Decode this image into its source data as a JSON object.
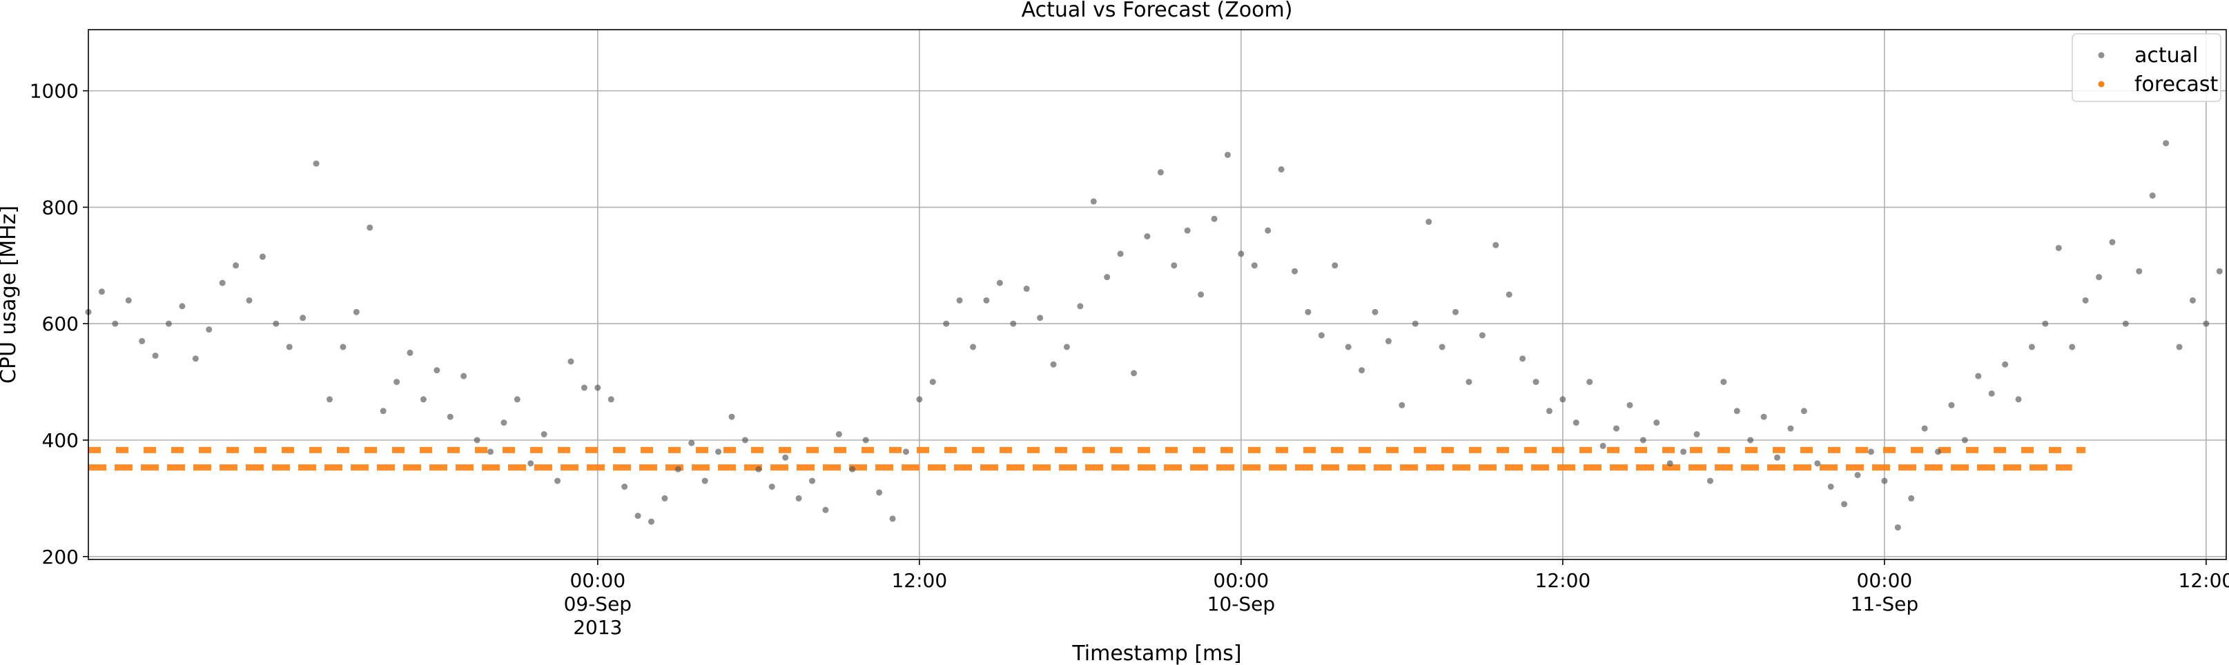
{
  "chart_data": {
    "type": "scatter",
    "title": "Actual vs Forecast (Zoom)",
    "xlabel": "Timestamp [ms]",
    "ylabel": "CPU usage [MHz]",
    "xlim": [
      "2013-09-08T05:00",
      "2013-09-11T12:45"
    ],
    "ylim": [
      195,
      1105
    ],
    "grid": true,
    "legend_position": "top-right",
    "x_ticks": [
      {
        "at": "2013-09-09T00:00",
        "label": "00:00",
        "sub": "09-Sep",
        "sub2": "2013"
      },
      {
        "at": "2013-09-09T12:00",
        "label": "12:00",
        "sub": "",
        "sub2": ""
      },
      {
        "at": "2013-09-10T00:00",
        "label": "00:00",
        "sub": "10-Sep",
        "sub2": ""
      },
      {
        "at": "2013-09-10T12:00",
        "label": "12:00",
        "sub": "",
        "sub2": ""
      },
      {
        "at": "2013-09-11T00:00",
        "label": "00:00",
        "sub": "11-Sep",
        "sub2": ""
      },
      {
        "at": "2013-09-11T12:00",
        "label": "12:00",
        "sub": "",
        "sub2": ""
      }
    ],
    "y_ticks": [
      200,
      400,
      600,
      800,
      1000
    ],
    "series": [
      {
        "name": "actual",
        "color": "#555555",
        "points": [
          [
            "2013-09-08T05:00",
            620
          ],
          [
            "2013-09-08T05:30",
            655
          ],
          [
            "2013-09-08T06:00",
            600
          ],
          [
            "2013-09-08T06:30",
            640
          ],
          [
            "2013-09-08T07:00",
            570
          ],
          [
            "2013-09-08T07:30",
            545
          ],
          [
            "2013-09-08T08:00",
            600
          ],
          [
            "2013-09-08T08:30",
            630
          ],
          [
            "2013-09-08T09:00",
            540
          ],
          [
            "2013-09-08T09:30",
            590
          ],
          [
            "2013-09-08T10:00",
            670
          ],
          [
            "2013-09-08T10:30",
            700
          ],
          [
            "2013-09-08T11:00",
            640
          ],
          [
            "2013-09-08T11:30",
            715
          ],
          [
            "2013-09-08T12:00",
            600
          ],
          [
            "2013-09-08T12:30",
            560
          ],
          [
            "2013-09-08T13:00",
            610
          ],
          [
            "2013-09-08T13:30",
            875
          ],
          [
            "2013-09-08T14:00",
            470
          ],
          [
            "2013-09-08T14:30",
            560
          ],
          [
            "2013-09-08T15:00",
            620
          ],
          [
            "2013-09-08T15:30",
            765
          ],
          [
            "2013-09-08T16:00",
            450
          ],
          [
            "2013-09-08T16:30",
            500
          ],
          [
            "2013-09-08T17:00",
            550
          ],
          [
            "2013-09-08T17:30",
            470
          ],
          [
            "2013-09-08T18:00",
            520
          ],
          [
            "2013-09-08T18:30",
            440
          ],
          [
            "2013-09-08T19:00",
            510
          ],
          [
            "2013-09-08T19:30",
            400
          ],
          [
            "2013-09-08T20:00",
            380
          ],
          [
            "2013-09-08T20:30",
            430
          ],
          [
            "2013-09-08T21:00",
            470
          ],
          [
            "2013-09-08T21:30",
            360
          ],
          [
            "2013-09-08T22:00",
            410
          ],
          [
            "2013-09-08T22:30",
            330
          ],
          [
            "2013-09-08T23:00",
            535
          ],
          [
            "2013-09-08T23:30",
            490
          ],
          [
            "2013-09-09T00:00",
            490
          ],
          [
            "2013-09-09T00:30",
            470
          ],
          [
            "2013-09-09T01:00",
            320
          ],
          [
            "2013-09-09T01:30",
            270
          ],
          [
            "2013-09-09T02:00",
            260
          ],
          [
            "2013-09-09T02:30",
            300
          ],
          [
            "2013-09-09T03:00",
            350
          ],
          [
            "2013-09-09T03:30",
            395
          ],
          [
            "2013-09-09T04:00",
            330
          ],
          [
            "2013-09-09T04:30",
            380
          ],
          [
            "2013-09-09T05:00",
            440
          ],
          [
            "2013-09-09T05:30",
            400
          ],
          [
            "2013-09-09T06:00",
            350
          ],
          [
            "2013-09-09T06:30",
            320
          ],
          [
            "2013-09-09T07:00",
            370
          ],
          [
            "2013-09-09T07:30",
            300
          ],
          [
            "2013-09-09T08:00",
            330
          ],
          [
            "2013-09-09T08:30",
            280
          ],
          [
            "2013-09-09T09:00",
            410
          ],
          [
            "2013-09-09T09:30",
            350
          ],
          [
            "2013-09-09T10:00",
            400
          ],
          [
            "2013-09-09T10:30",
            310
          ],
          [
            "2013-09-09T11:00",
            265
          ],
          [
            "2013-09-09T11:30",
            380
          ],
          [
            "2013-09-09T12:00",
            470
          ],
          [
            "2013-09-09T12:30",
            500
          ],
          [
            "2013-09-09T13:00",
            600
          ],
          [
            "2013-09-09T13:30",
            640
          ],
          [
            "2013-09-09T14:00",
            560
          ],
          [
            "2013-09-09T14:30",
            640
          ],
          [
            "2013-09-09T15:00",
            670
          ],
          [
            "2013-09-09T15:30",
            600
          ],
          [
            "2013-09-09T16:00",
            660
          ],
          [
            "2013-09-09T16:30",
            610
          ],
          [
            "2013-09-09T17:00",
            530
          ],
          [
            "2013-09-09T17:30",
            560
          ],
          [
            "2013-09-09T18:00",
            630
          ],
          [
            "2013-09-09T18:30",
            810
          ],
          [
            "2013-09-09T19:00",
            680
          ],
          [
            "2013-09-09T19:30",
            720
          ],
          [
            "2013-09-09T20:00",
            515
          ],
          [
            "2013-09-09T20:30",
            750
          ],
          [
            "2013-09-09T21:00",
            860
          ],
          [
            "2013-09-09T21:30",
            700
          ],
          [
            "2013-09-09T22:00",
            760
          ],
          [
            "2013-09-09T22:30",
            650
          ],
          [
            "2013-09-09T23:00",
            780
          ],
          [
            "2013-09-09T23:30",
            890
          ],
          [
            "2013-09-10T00:00",
            720
          ],
          [
            "2013-09-10T00:30",
            700
          ],
          [
            "2013-09-10T01:00",
            760
          ],
          [
            "2013-09-10T01:30",
            865
          ],
          [
            "2013-09-10T02:00",
            690
          ],
          [
            "2013-09-10T02:30",
            620
          ],
          [
            "2013-09-10T03:00",
            580
          ],
          [
            "2013-09-10T03:30",
            700
          ],
          [
            "2013-09-10T04:00",
            560
          ],
          [
            "2013-09-10T04:30",
            520
          ],
          [
            "2013-09-10T05:00",
            620
          ],
          [
            "2013-09-10T05:30",
            570
          ],
          [
            "2013-09-10T06:00",
            460
          ],
          [
            "2013-09-10T06:30",
            600
          ],
          [
            "2013-09-10T07:00",
            775
          ],
          [
            "2013-09-10T07:30",
            560
          ],
          [
            "2013-09-10T08:00",
            620
          ],
          [
            "2013-09-10T08:30",
            500
          ],
          [
            "2013-09-10T09:00",
            580
          ],
          [
            "2013-09-10T09:30",
            735
          ],
          [
            "2013-09-10T10:00",
            650
          ],
          [
            "2013-09-10T10:30",
            540
          ],
          [
            "2013-09-10T11:00",
            500
          ],
          [
            "2013-09-10T11:30",
            450
          ],
          [
            "2013-09-10T12:00",
            470
          ],
          [
            "2013-09-10T12:30",
            430
          ],
          [
            "2013-09-10T13:00",
            500
          ],
          [
            "2013-09-10T13:30",
            390
          ],
          [
            "2013-09-10T14:00",
            420
          ],
          [
            "2013-09-10T14:30",
            460
          ],
          [
            "2013-09-10T15:00",
            400
          ],
          [
            "2013-09-10T15:30",
            430
          ],
          [
            "2013-09-10T16:00",
            360
          ],
          [
            "2013-09-10T16:30",
            380
          ],
          [
            "2013-09-10T17:00",
            410
          ],
          [
            "2013-09-10T17:30",
            330
          ],
          [
            "2013-09-10T18:00",
            500
          ],
          [
            "2013-09-10T18:30",
            450
          ],
          [
            "2013-09-10T19:00",
            400
          ],
          [
            "2013-09-10T19:30",
            440
          ],
          [
            "2013-09-10T20:00",
            370
          ],
          [
            "2013-09-10T20:30",
            420
          ],
          [
            "2013-09-10T21:00",
            450
          ],
          [
            "2013-09-10T21:30",
            360
          ],
          [
            "2013-09-10T22:00",
            320
          ],
          [
            "2013-09-10T22:30",
            290
          ],
          [
            "2013-09-10T23:00",
            340
          ],
          [
            "2013-09-10T23:30",
            380
          ],
          [
            "2013-09-11T00:00",
            330
          ],
          [
            "2013-09-11T00:30",
            250
          ],
          [
            "2013-09-11T01:00",
            300
          ],
          [
            "2013-09-11T01:30",
            420
          ],
          [
            "2013-09-11T02:00",
            380
          ],
          [
            "2013-09-11T02:30",
            460
          ],
          [
            "2013-09-11T03:00",
            400
          ],
          [
            "2013-09-11T03:30",
            510
          ],
          [
            "2013-09-11T04:00",
            480
          ],
          [
            "2013-09-11T04:30",
            530
          ],
          [
            "2013-09-11T05:00",
            470
          ],
          [
            "2013-09-11T05:30",
            560
          ],
          [
            "2013-09-11T06:00",
            600
          ],
          [
            "2013-09-11T06:30",
            730
          ],
          [
            "2013-09-11T07:00",
            560
          ],
          [
            "2013-09-11T07:30",
            640
          ],
          [
            "2013-09-11T08:00",
            680
          ],
          [
            "2013-09-11T08:30",
            740
          ],
          [
            "2013-09-11T09:00",
            600
          ],
          [
            "2013-09-11T09:30",
            690
          ],
          [
            "2013-09-11T10:00",
            820
          ],
          [
            "2013-09-11T10:30",
            910
          ],
          [
            "2013-09-11T11:00",
            560
          ],
          [
            "2013-09-11T11:30",
            640
          ],
          [
            "2013-09-11T12:00",
            600
          ],
          [
            "2013-09-11T12:30",
            690
          ]
        ]
      },
      {
        "name": "forecast",
        "color": "#ff7f0e",
        "levels": [
          {
            "value": 383,
            "from": "2013-09-08T05:00",
            "to": "2013-09-11T07:30"
          },
          {
            "value": 353,
            "from": "2013-09-08T05:00",
            "to": "2013-09-11T07:00"
          }
        ]
      }
    ]
  }
}
